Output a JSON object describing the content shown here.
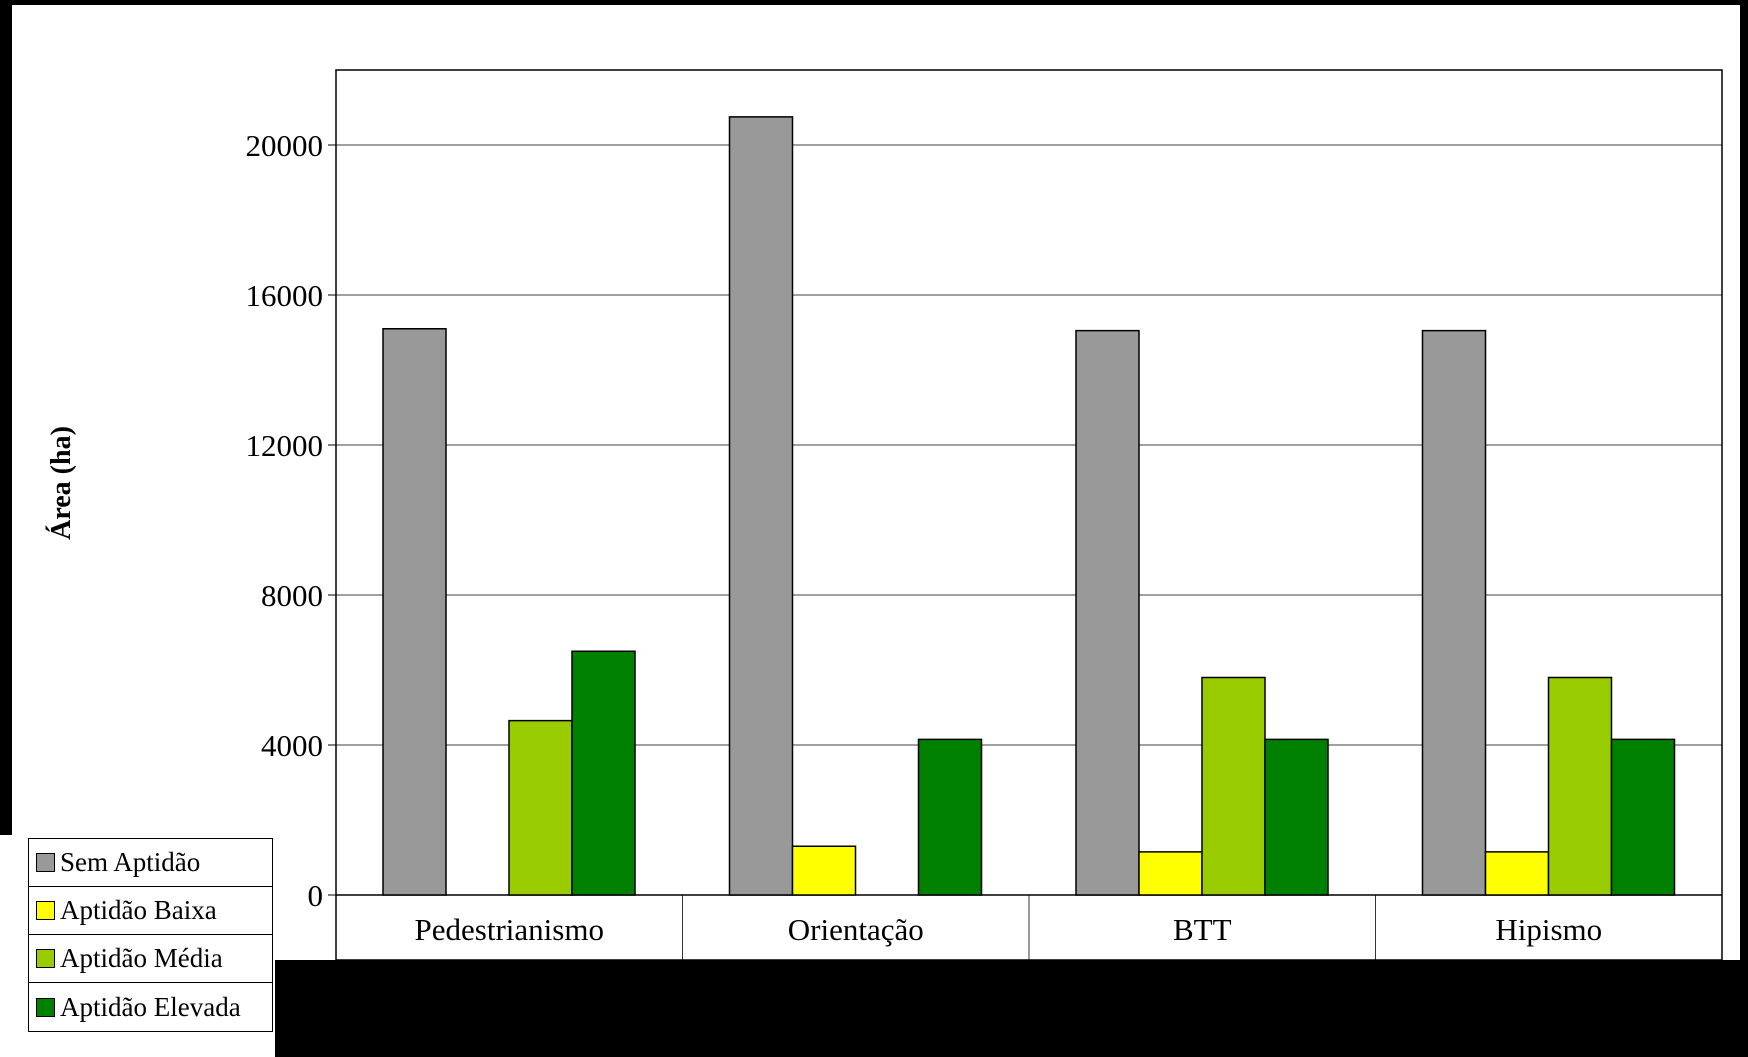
{
  "chart_data": {
    "type": "bar",
    "title": "",
    "xlabel": "",
    "ylabel": "Área (ha)",
    "ylim": [
      0,
      22000
    ],
    "yticks": [
      0,
      4000,
      8000,
      12000,
      16000,
      20000
    ],
    "grid": true,
    "legend_position": "bottom-left",
    "categories": [
      "Pedestrianismo",
      "Orientação",
      "BTT",
      "Hipismo"
    ],
    "series": [
      {
        "name": "Sem Aptidão",
        "color": "#999999",
        "values": [
          15100,
          20750,
          15050,
          15050
        ]
      },
      {
        "name": "Aptidão Baixa",
        "color": "#ffff00",
        "values": [
          0,
          1300,
          1150,
          1150
        ]
      },
      {
        "name": "Aptidão Média",
        "color": "#99cc00",
        "values": [
          4650,
          0,
          5800,
          5800
        ]
      },
      {
        "name": "Aptidão Elevada",
        "color": "#008000",
        "values": [
          6500,
          4150,
          4150,
          4150
        ]
      }
    ]
  }
}
